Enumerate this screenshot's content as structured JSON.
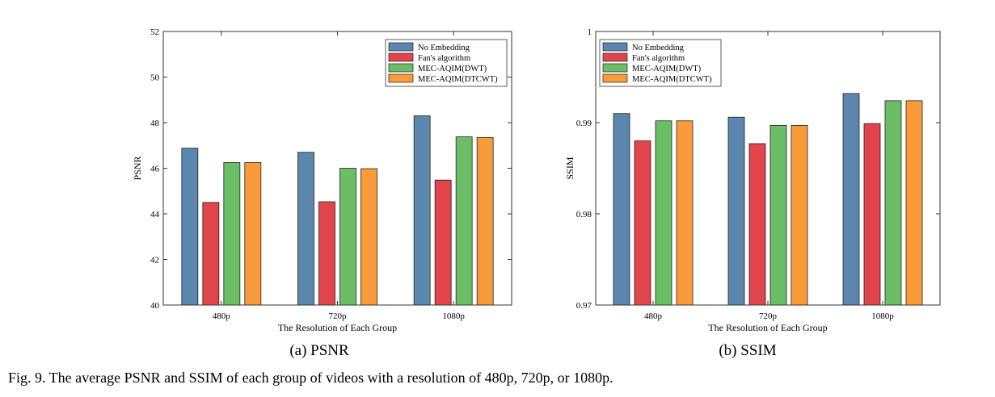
{
  "series_colors": [
    "#5b86ae",
    "#e2444c",
    "#6bbd66",
    "#f99b3a"
  ],
  "chart_data": [
    {
      "type": "bar",
      "caption": "(a) PSNR",
      "xlabel": "The Resolution of Each Group",
      "ylabel": "PSNR",
      "categories": [
        "480p",
        "720p",
        "1080p"
      ],
      "ylim": [
        40,
        52
      ],
      "yticks": [
        40,
        42,
        44,
        46,
        48,
        50,
        52
      ],
      "ytick_labels": [
        "40",
        "42",
        "44",
        "46",
        "48",
        "50",
        "52"
      ],
      "legend": "top-right",
      "series": [
        {
          "name": "No Embedding",
          "values": [
            46.88,
            46.7,
            48.3
          ]
        },
        {
          "name": "Fan's algorithm",
          "values": [
            44.5,
            44.53,
            45.48
          ]
        },
        {
          "name": "MEC-AQIM(DWT)",
          "values": [
            46.25,
            46.0,
            47.38
          ]
        },
        {
          "name": "MEC-AQIM(DTCWT)",
          "values": [
            46.25,
            45.98,
            47.35
          ]
        }
      ]
    },
    {
      "type": "bar",
      "caption": "(b) SSIM",
      "xlabel": "The Resolution of Each Group",
      "ylabel": "SSIM",
      "categories": [
        "480p",
        "720p",
        "1080p"
      ],
      "ylim": [
        0.97,
        1.0
      ],
      "yticks": [
        0.97,
        0.98,
        0.99,
        1.0
      ],
      "ytick_labels": [
        "0.97",
        "0.98",
        "0.99",
        "1"
      ],
      "legend": "top-left",
      "series": [
        {
          "name": "No Embedding",
          "values": [
            0.991,
            0.9906,
            0.9932
          ]
        },
        {
          "name": "Fan's algorithm",
          "values": [
            0.988,
            0.9877,
            0.9899
          ]
        },
        {
          "name": "MEC-AQIM(DWT)",
          "values": [
            0.9902,
            0.9897,
            0.9924
          ]
        },
        {
          "name": "MEC-AQIM(DTCWT)",
          "values": [
            0.9902,
            0.9897,
            0.9924
          ]
        }
      ]
    }
  ],
  "figure_caption": "Fig. 9.  The average PSNR and SSIM of each group of videos with a resolution of 480p, 720p, or 1080p."
}
